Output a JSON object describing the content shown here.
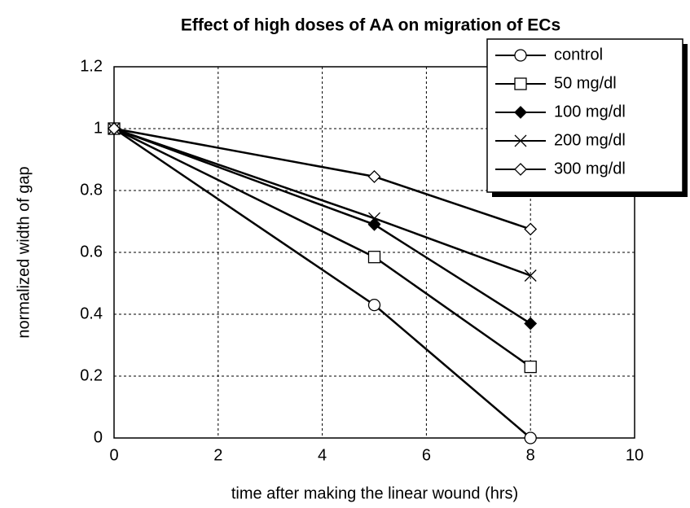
{
  "chart_data": {
    "type": "line",
    "title": "Effect of high doses of AA on migration of ECs",
    "x_label": "time after making the linear wound (hrs)",
    "y_label": "normalized width of gap",
    "x": [
      0,
      5,
      8
    ],
    "series": [
      {
        "name": "control",
        "color": "#000000",
        "marker": "circle",
        "values": [
          1,
          0.43,
          0
        ]
      },
      {
        "name": "50 mg/dl",
        "color": "#000000",
        "marker": "square",
        "values": [
          1,
          0.585,
          0.23
        ]
      },
      {
        "name": "100 mg/dl",
        "color": "#000000",
        "marker": "diamond-filled",
        "values": [
          1,
          0.69,
          0.37
        ]
      },
      {
        "name": "200 mg/dl",
        "color": "#000000",
        "marker": "x",
        "values": [
          1,
          0.71,
          0.525
        ]
      },
      {
        "name": "300 mg/dl",
        "color": "#000000",
        "marker": "diamond",
        "values": [
          1,
          0.845,
          0.675
        ]
      }
    ],
    "xlim": [
      0,
      10
    ],
    "xticks": [
      0,
      2,
      4,
      6,
      8,
      10
    ],
    "ylim": [
      0,
      1.2
    ],
    "yticks": [
      0,
      0.2,
      0.4,
      0.6,
      0.8,
      1,
      1.2
    ],
    "grid": true,
    "legend": "upper right"
  }
}
